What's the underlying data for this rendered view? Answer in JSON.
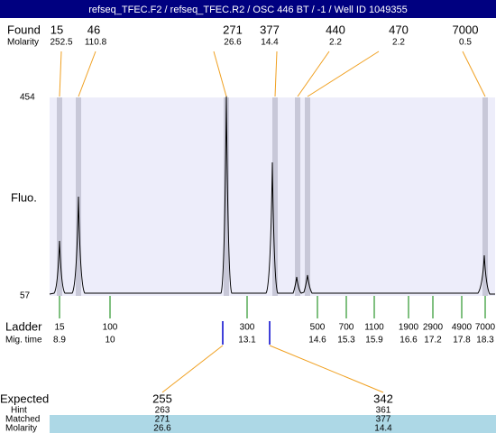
{
  "title": "refseq_TFEC.F2 / refseq_TFEC.R2 / OSC 446 BT / -1 / Well ID 1049355",
  "found": {
    "label": "Found",
    "molarity_label": "Molarity",
    "peaks": [
      {
        "size": "15",
        "molarity": "252.5"
      },
      {
        "size": "46",
        "molarity": "110.8"
      },
      {
        "size": "271",
        "molarity": "26.6"
      },
      {
        "size": "377",
        "molarity": "14.4"
      },
      {
        "size": "440",
        "molarity": "2.2"
      },
      {
        "size": "470",
        "molarity": "2.2"
      },
      {
        "size": "7000",
        "molarity": "0.5"
      }
    ]
  },
  "y_axis": {
    "max": "454",
    "min": "57",
    "label": "Fluo."
  },
  "ladder": {
    "label": "Ladder",
    "time_label": "Mig. time",
    "items": [
      {
        "size": "15",
        "time": "8.9"
      },
      {
        "size": "100",
        "time": "10"
      },
      {
        "size": "300",
        "time": "13.1"
      },
      {
        "size": "500",
        "time": "14.6"
      },
      {
        "size": "700",
        "time": "15.3"
      },
      {
        "size": "1100",
        "time": "15.9"
      },
      {
        "size": "1900",
        "time": "16.6"
      },
      {
        "size": "2900",
        "time": "17.2"
      },
      {
        "size": "4900",
        "time": "17.8"
      },
      {
        "size": "7000",
        "time": "18.3"
      }
    ]
  },
  "expected": {
    "label": "Expected",
    "hint_label": "Hint",
    "matched_label": "Matched",
    "molarity_label": "Molarity",
    "items": [
      {
        "expected": "255",
        "hint": "263",
        "matched": "271",
        "molarity": "26.6"
      },
      {
        "expected": "342",
        "hint": "361",
        "matched": "377",
        "molarity": "14.4"
      }
    ]
  }
}
